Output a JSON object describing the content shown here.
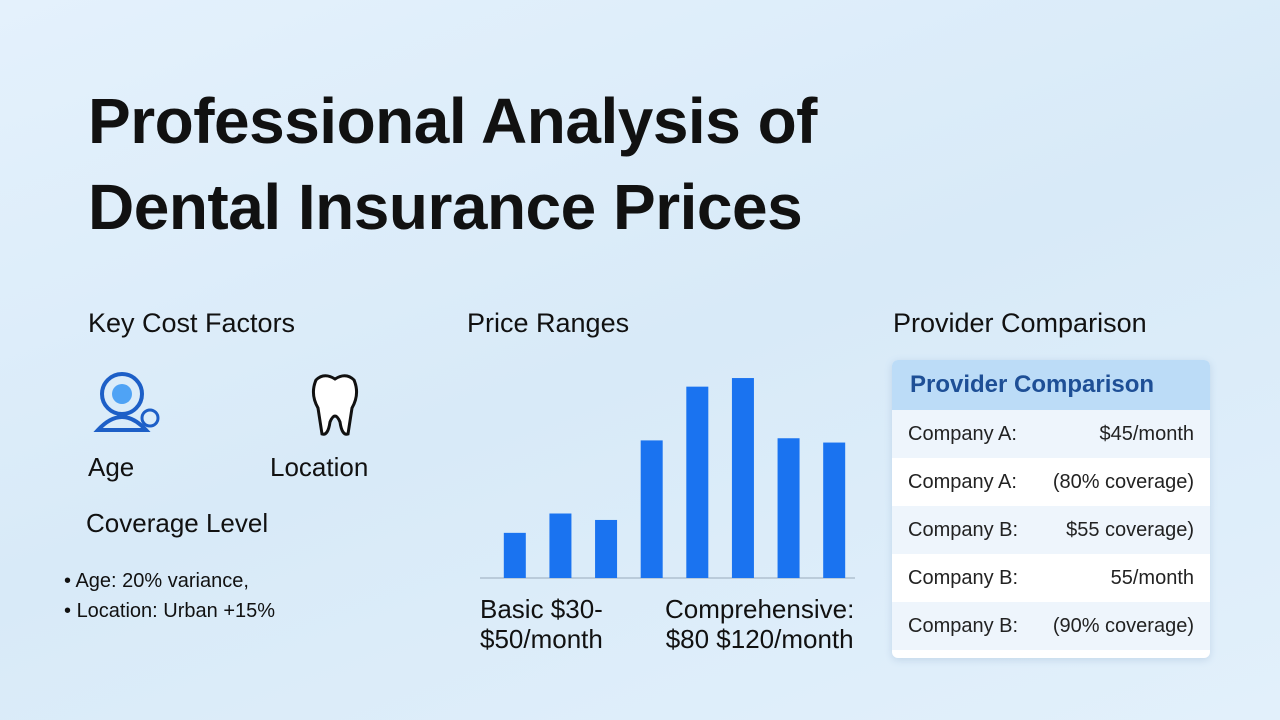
{
  "title": [
    "Professional Analysis of",
    "Dental Insurance Prices"
  ],
  "factors": {
    "heading": "Key Cost Factors",
    "icons": [
      "Age",
      "Location"
    ],
    "subheading": "Coverage Level",
    "bullets": [
      "Age: 20% variance,",
      "Location: Urban +15%"
    ]
  },
  "prices": {
    "heading": "Price Ranges",
    "basic": [
      "Basic $30-",
      "$50/month"
    ],
    "comprehensive": [
      "Comprehensive:",
      "$80 $120/month"
    ]
  },
  "chart_data": {
    "type": "bar",
    "categories": [
      null,
      null,
      null,
      null,
      null,
      null,
      null,
      null
    ],
    "values": [
      21,
      30,
      27,
      64,
      89,
      93,
      65,
      63
    ],
    "color": "#1a73f0",
    "ylim": [
      0,
      100
    ]
  },
  "providers": {
    "heading": "Provider Comparison",
    "card_title": "Provider Comparison",
    "rows": [
      [
        "Company A:",
        "$45/month"
      ],
      [
        "Company A:",
        "(80% coverage)"
      ],
      [
        "Company B:",
        "$55 coverage)"
      ],
      [
        "Company B:",
        "55/month"
      ],
      [
        "Company B:",
        "(90% coverage)"
      ]
    ]
  }
}
